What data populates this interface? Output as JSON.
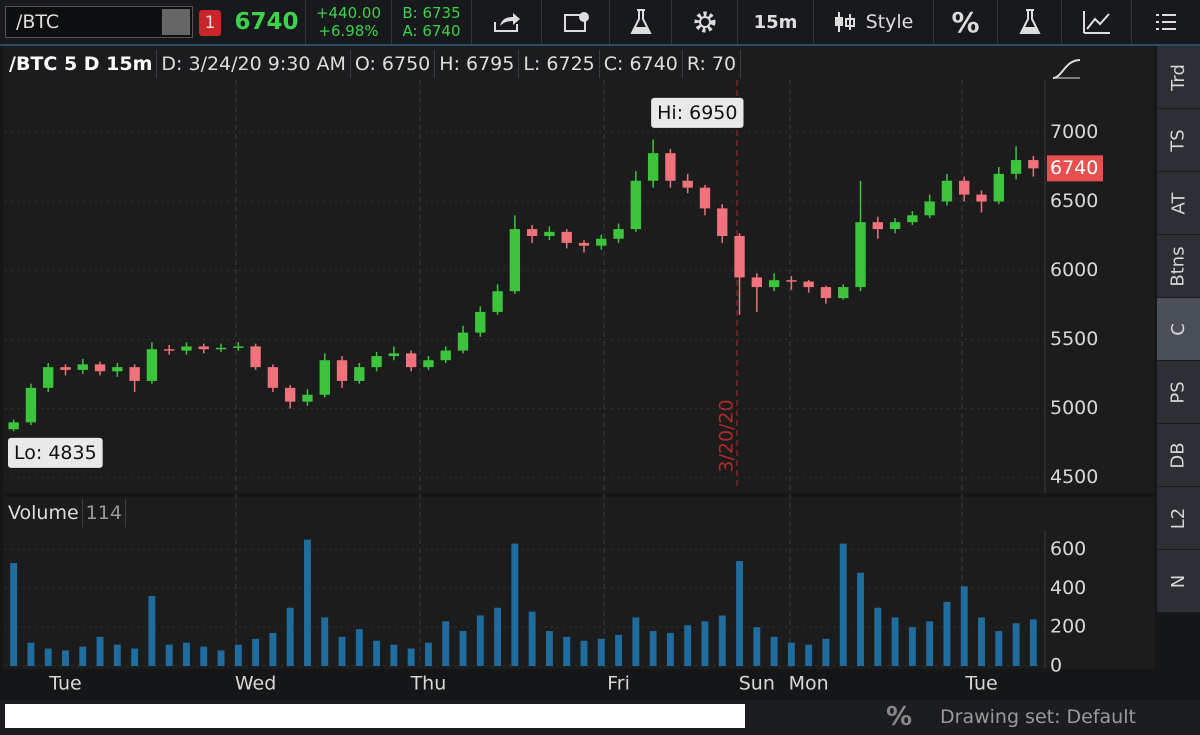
{
  "toolbar": {
    "symbol": "/BTC",
    "alert_count": "1",
    "last": "6740",
    "change": "+440.00",
    "change_pct": "+6.98%",
    "bid": "B: 6735",
    "ask": "A: 6740",
    "interval": "15m",
    "style": "Style",
    "percent": "%"
  },
  "chart_header": [
    "/BTC 5 D 15m",
    "D: 3/24/20 9:30 AM",
    "O: 6750",
    "H: 6795",
    "L: 6725",
    "C: 6740",
    "R: 70"
  ],
  "chart_data": [
    {
      "type": "candlestick",
      "categories": [
        null,
        null,
        null,
        "Tue",
        null,
        null,
        null,
        null,
        null,
        null,
        null,
        null,
        null,
        null,
        "Wed",
        null,
        null,
        null,
        null,
        null,
        null,
        null,
        null,
        null,
        "Thu",
        null,
        null,
        null,
        null,
        null,
        null,
        null,
        null,
        null,
        null,
        "Fri",
        null,
        null,
        null,
        null,
        null,
        null,
        null,
        "Sun",
        null,
        null,
        "Mon",
        null,
        null,
        null,
        null,
        null,
        null,
        null,
        null,
        null,
        "Tue",
        null,
        null,
        null
      ],
      "open": [
        4850,
        4900,
        5150,
        5300,
        5280,
        5320,
        5270,
        5300,
        5200,
        5430,
        5420,
        5450,
        5430,
        5440,
        5450,
        5300,
        5150,
        5050,
        5100,
        5350,
        5200,
        5300,
        5380,
        5400,
        5300,
        5350,
        5420,
        5550,
        5700,
        5850,
        6300,
        6250,
        6280,
        6200,
        6180,
        6230,
        6300,
        6650,
        6850,
        6650,
        6600,
        6450,
        6250,
        5950,
        5880,
        5930,
        5920,
        5880,
        5800,
        5880,
        6350,
        6300,
        6350,
        6400,
        6500,
        6650,
        6550,
        6500,
        6700,
        6800
      ],
      "high": [
        4920,
        5180,
        5330,
        5320,
        5360,
        5340,
        5330,
        5320,
        5480,
        5460,
        5480,
        5470,
        5470,
        5480,
        5470,
        5320,
        5170,
        5140,
        5400,
        5380,
        5330,
        5410,
        5450,
        5420,
        5380,
        5450,
        5600,
        5740,
        5900,
        6400,
        6330,
        6320,
        6300,
        6220,
        6260,
        6340,
        6720,
        6950,
        6880,
        6700,
        6620,
        6480,
        6270,
        5980,
        5980,
        5960,
        5930,
        5890,
        5900,
        6650,
        6390,
        6380,
        6430,
        6550,
        6700,
        6680,
        6580,
        6750,
        6900,
        6830
      ],
      "low": [
        4835,
        4880,
        5120,
        5240,
        5250,
        5240,
        5230,
        5120,
        5180,
        5390,
        5390,
        5400,
        5410,
        5420,
        5280,
        5120,
        5000,
        5020,
        5080,
        5150,
        5180,
        5270,
        5350,
        5270,
        5280,
        5330,
        5400,
        5520,
        5680,
        5830,
        6200,
        6220,
        6160,
        6130,
        6150,
        6200,
        6280,
        6600,
        6600,
        6560,
        6400,
        6200,
        5680,
        5700,
        5850,
        5860,
        5840,
        5760,
        5790,
        5850,
        6230,
        6270,
        6330,
        6380,
        6470,
        6500,
        6420,
        6480,
        6660,
        6680
      ],
      "close": [
        4900,
        5150,
        5300,
        5280,
        5320,
        5270,
        5300,
        5200,
        5430,
        5420,
        5450,
        5430,
        5440,
        5450,
        5300,
        5150,
        5050,
        5100,
        5350,
        5200,
        5300,
        5380,
        5400,
        5300,
        5350,
        5420,
        5550,
        5700,
        5850,
        6300,
        6250,
        6280,
        6200,
        6180,
        6230,
        6300,
        6650,
        6850,
        6650,
        6600,
        6450,
        6250,
        5950,
        5880,
        5930,
        5920,
        5880,
        5800,
        5880,
        6350,
        6300,
        6350,
        6400,
        6500,
        6650,
        6550,
        6500,
        6700,
        6800,
        6740
      ],
      "up_color": "#3cc43c",
      "down_color": "#f0727a",
      "last_color": "#e8504f",
      "ylim": [
        4410,
        7380
      ],
      "yticks": [
        4500,
        5000,
        5500,
        6000,
        6500,
        7000
      ],
      "annotations": {
        "high": "Hi: 6950",
        "low": "Lo: 4835",
        "date_marker": "3/20/20"
      }
    },
    {
      "type": "bar",
      "title": "Volume",
      "cursor_value": 114,
      "values": [
        530,
        120,
        90,
        80,
        100,
        150,
        110,
        90,
        360,
        110,
        120,
        100,
        80,
        110,
        140,
        170,
        300,
        650,
        250,
        150,
        190,
        130,
        110,
        90,
        120,
        230,
        180,
        260,
        300,
        630,
        280,
        180,
        150,
        130,
        140,
        160,
        250,
        180,
        170,
        210,
        230,
        260,
        540,
        200,
        150,
        120,
        110,
        140,
        630,
        480,
        300,
        250,
        200,
        230,
        330,
        410,
        250,
        180,
        220,
        240
      ],
      "color": "#1f6d9e",
      "ylim": [
        0,
        700
      ],
      "yticks": [
        0,
        200,
        400,
        600
      ]
    }
  ],
  "side_tabs": [
    "Trd",
    "TS",
    "AT",
    "Btns",
    "C",
    "PS",
    "DB",
    "L2",
    "N"
  ],
  "footer": {
    "percent": "%",
    "drawing_set": "Drawing set: Default"
  }
}
